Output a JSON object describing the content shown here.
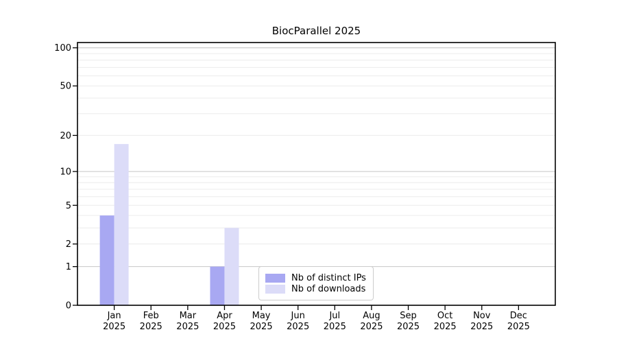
{
  "chart_data": {
    "type": "bar",
    "title": "BiocParallel 2025",
    "categories": [
      "Jan",
      "Feb",
      "Mar",
      "Apr",
      "May",
      "Jun",
      "Jul",
      "Aug",
      "Sep",
      "Oct",
      "Nov",
      "Dec"
    ],
    "category_year": "2025",
    "series": [
      {
        "name": "Nb of distinct IPs",
        "color": "#a8a8f2",
        "values": [
          4,
          0,
          0,
          1,
          0,
          0,
          0,
          0,
          0,
          0,
          0,
          0
        ]
      },
      {
        "name": "Nb of downloads",
        "color": "#dcdcf8",
        "values": [
          17,
          0,
          0,
          3,
          0,
          0,
          0,
          0,
          0,
          0,
          0,
          0
        ]
      }
    ],
    "yscale": "log1p",
    "ylim": [
      0,
      110
    ],
    "yticks": [
      0,
      1,
      2,
      5,
      10,
      20,
      50,
      100
    ],
    "grid_major": [
      1,
      10,
      100
    ],
    "grid_minor": [
      2,
      3,
      4,
      5,
      6,
      7,
      8,
      9,
      20,
      30,
      40,
      50,
      60,
      70,
      80,
      90
    ],
    "legend_position": "bottom-center",
    "grid_on": true
  },
  "colors": {
    "background": "#ffffff",
    "spine": "#000000",
    "tick_text": "#000000",
    "grid_major": "#c6c6c6",
    "grid_minor": "#ececec",
    "legend_border": "#cccccc"
  }
}
